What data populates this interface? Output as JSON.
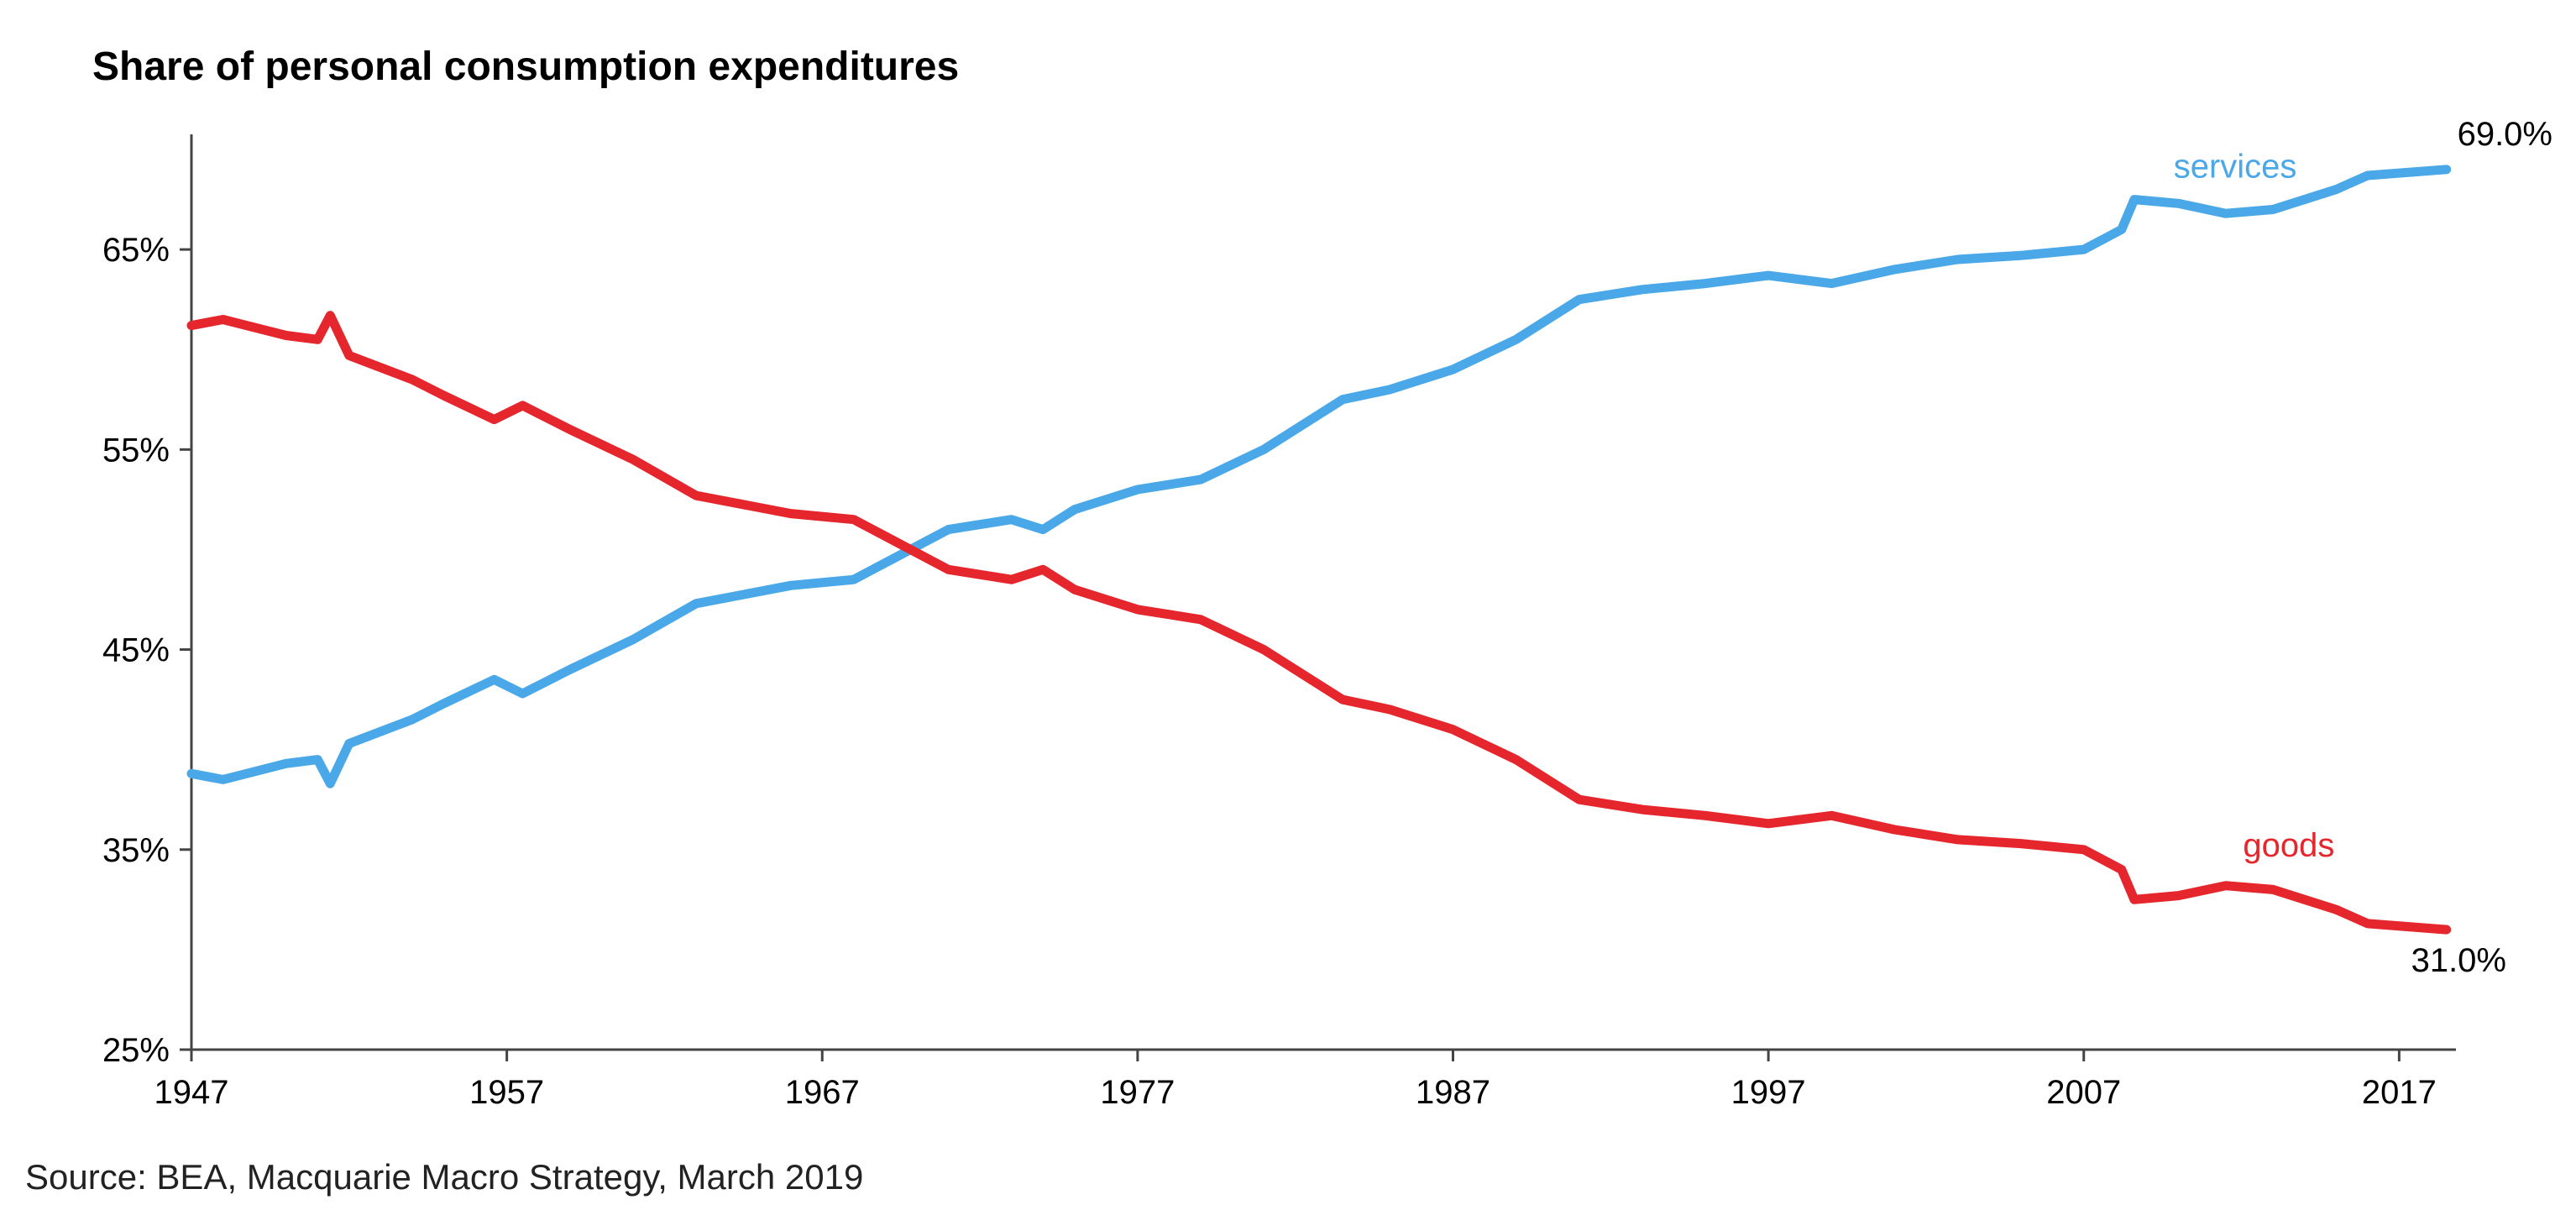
{
  "chart_data": {
    "type": "line",
    "title": "Share of personal consumption expenditures",
    "source": "Source: BEA, Macquarie Macro Strategy, March 2019",
    "xlabel": "",
    "ylabel": "",
    "xlim": [
      1947,
      2018.8
    ],
    "ylim": [
      25,
      70
    ],
    "xticks": [
      1947,
      1957,
      1967,
      1977,
      1987,
      1997,
      2007,
      2017
    ],
    "xtick_labels": [
      "1947",
      "1957",
      "1967",
      "1977",
      "1987",
      "1997",
      "2007",
      "2017"
    ],
    "yticks": [
      25,
      35,
      45,
      55,
      65
    ],
    "ytick_labels": [
      "25%",
      "35%",
      "45%",
      "55%",
      "65%"
    ],
    "grid": false,
    "series": [
      {
        "name": "services",
        "color": "#4aa8e8",
        "x": [
          1947,
          1948,
          1950,
          1951,
          1951.4,
          1952,
          1954,
          1955,
          1956.6,
          1957.5,
          1959,
          1961,
          1963,
          1966,
          1968,
          1971,
          1973,
          1974,
          1975,
          1977,
          1979,
          1981,
          1983.5,
          1985,
          1987,
          1989,
          1991,
          1993,
          1995,
          1997,
          1999,
          2001,
          2003,
          2005,
          2007,
          2008.2,
          2008.6,
          2010,
          2011.5,
          2013,
          2015,
          2016,
          2018.5
        ],
        "values": [
          38.8,
          38.5,
          39.3,
          39.5,
          38.3,
          40.3,
          41.5,
          42.3,
          43.5,
          42.8,
          44.0,
          45.5,
          47.3,
          48.2,
          48.5,
          51.0,
          51.5,
          51.0,
          52.0,
          53.0,
          53.5,
          55.0,
          57.5,
          58.0,
          59.0,
          60.5,
          62.5,
          63.0,
          63.3,
          63.7,
          63.3,
          64.0,
          64.5,
          64.7,
          65.0,
          66.0,
          67.5,
          67.3,
          66.8,
          67.0,
          68.0,
          68.7,
          69.0
        ]
      },
      {
        "name": "goods",
        "color": "#e6262d",
        "x": [
          1947,
          1948,
          1950,
          1951,
          1951.4,
          1952,
          1954,
          1955,
          1956.6,
          1957.5,
          1959,
          1961,
          1963,
          1966,
          1968,
          1971,
          1973,
          1974,
          1975,
          1977,
          1979,
          1981,
          1983.5,
          1985,
          1987,
          1989,
          1991,
          1993,
          1995,
          1997,
          1999,
          2001,
          2003,
          2005,
          2007,
          2008.2,
          2008.6,
          2010,
          2011.5,
          2013,
          2015,
          2016,
          2018.5
        ],
        "values": [
          61.2,
          61.5,
          60.7,
          60.5,
          61.7,
          59.7,
          58.5,
          57.7,
          56.5,
          57.2,
          56.0,
          54.5,
          52.7,
          51.8,
          51.5,
          49.0,
          48.5,
          49.0,
          48.0,
          47.0,
          46.5,
          45.0,
          42.5,
          42.0,
          41.0,
          39.5,
          37.5,
          37.0,
          36.7,
          36.3,
          36.7,
          36.0,
          35.5,
          35.3,
          35.0,
          34.0,
          32.5,
          32.7,
          33.2,
          33.0,
          32.0,
          31.3,
          31.0
        ]
      }
    ],
    "annotations": {
      "services_label": "services",
      "goods_label": "goods",
      "services_end_value": "69.0%",
      "goods_end_value": "31.0%"
    }
  }
}
